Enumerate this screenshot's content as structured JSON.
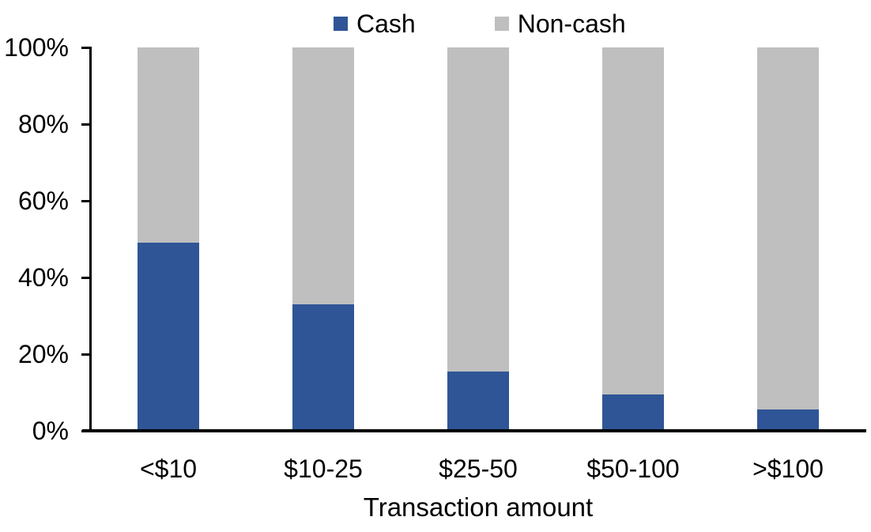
{
  "chart_data": {
    "type": "bar",
    "subtype": "stacked-100-percent-column",
    "categories": [
      "<$10",
      "$10-25",
      "$25-50",
      "$50-100",
      ">$100"
    ],
    "series": [
      {
        "name": "Cash",
        "color": "#2F5596",
        "values": [
          49,
          33,
          15.5,
          9.5,
          5.5
        ]
      },
      {
        "name": "Non-cash",
        "color": "#BFBFBF",
        "values": [
          51,
          67,
          84.5,
          90.5,
          94.5
        ]
      }
    ],
    "title": "",
    "xlabel": "Transaction amount",
    "ylabel": "",
    "ylim": [
      0,
      100
    ],
    "yticks": [
      "0%",
      "20%",
      "40%",
      "60%",
      "80%",
      "100%"
    ],
    "grid": false,
    "legend_position": "top",
    "axis_color": "#000000",
    "text_color": "#000000",
    "background_color": "#FFFFFF"
  }
}
